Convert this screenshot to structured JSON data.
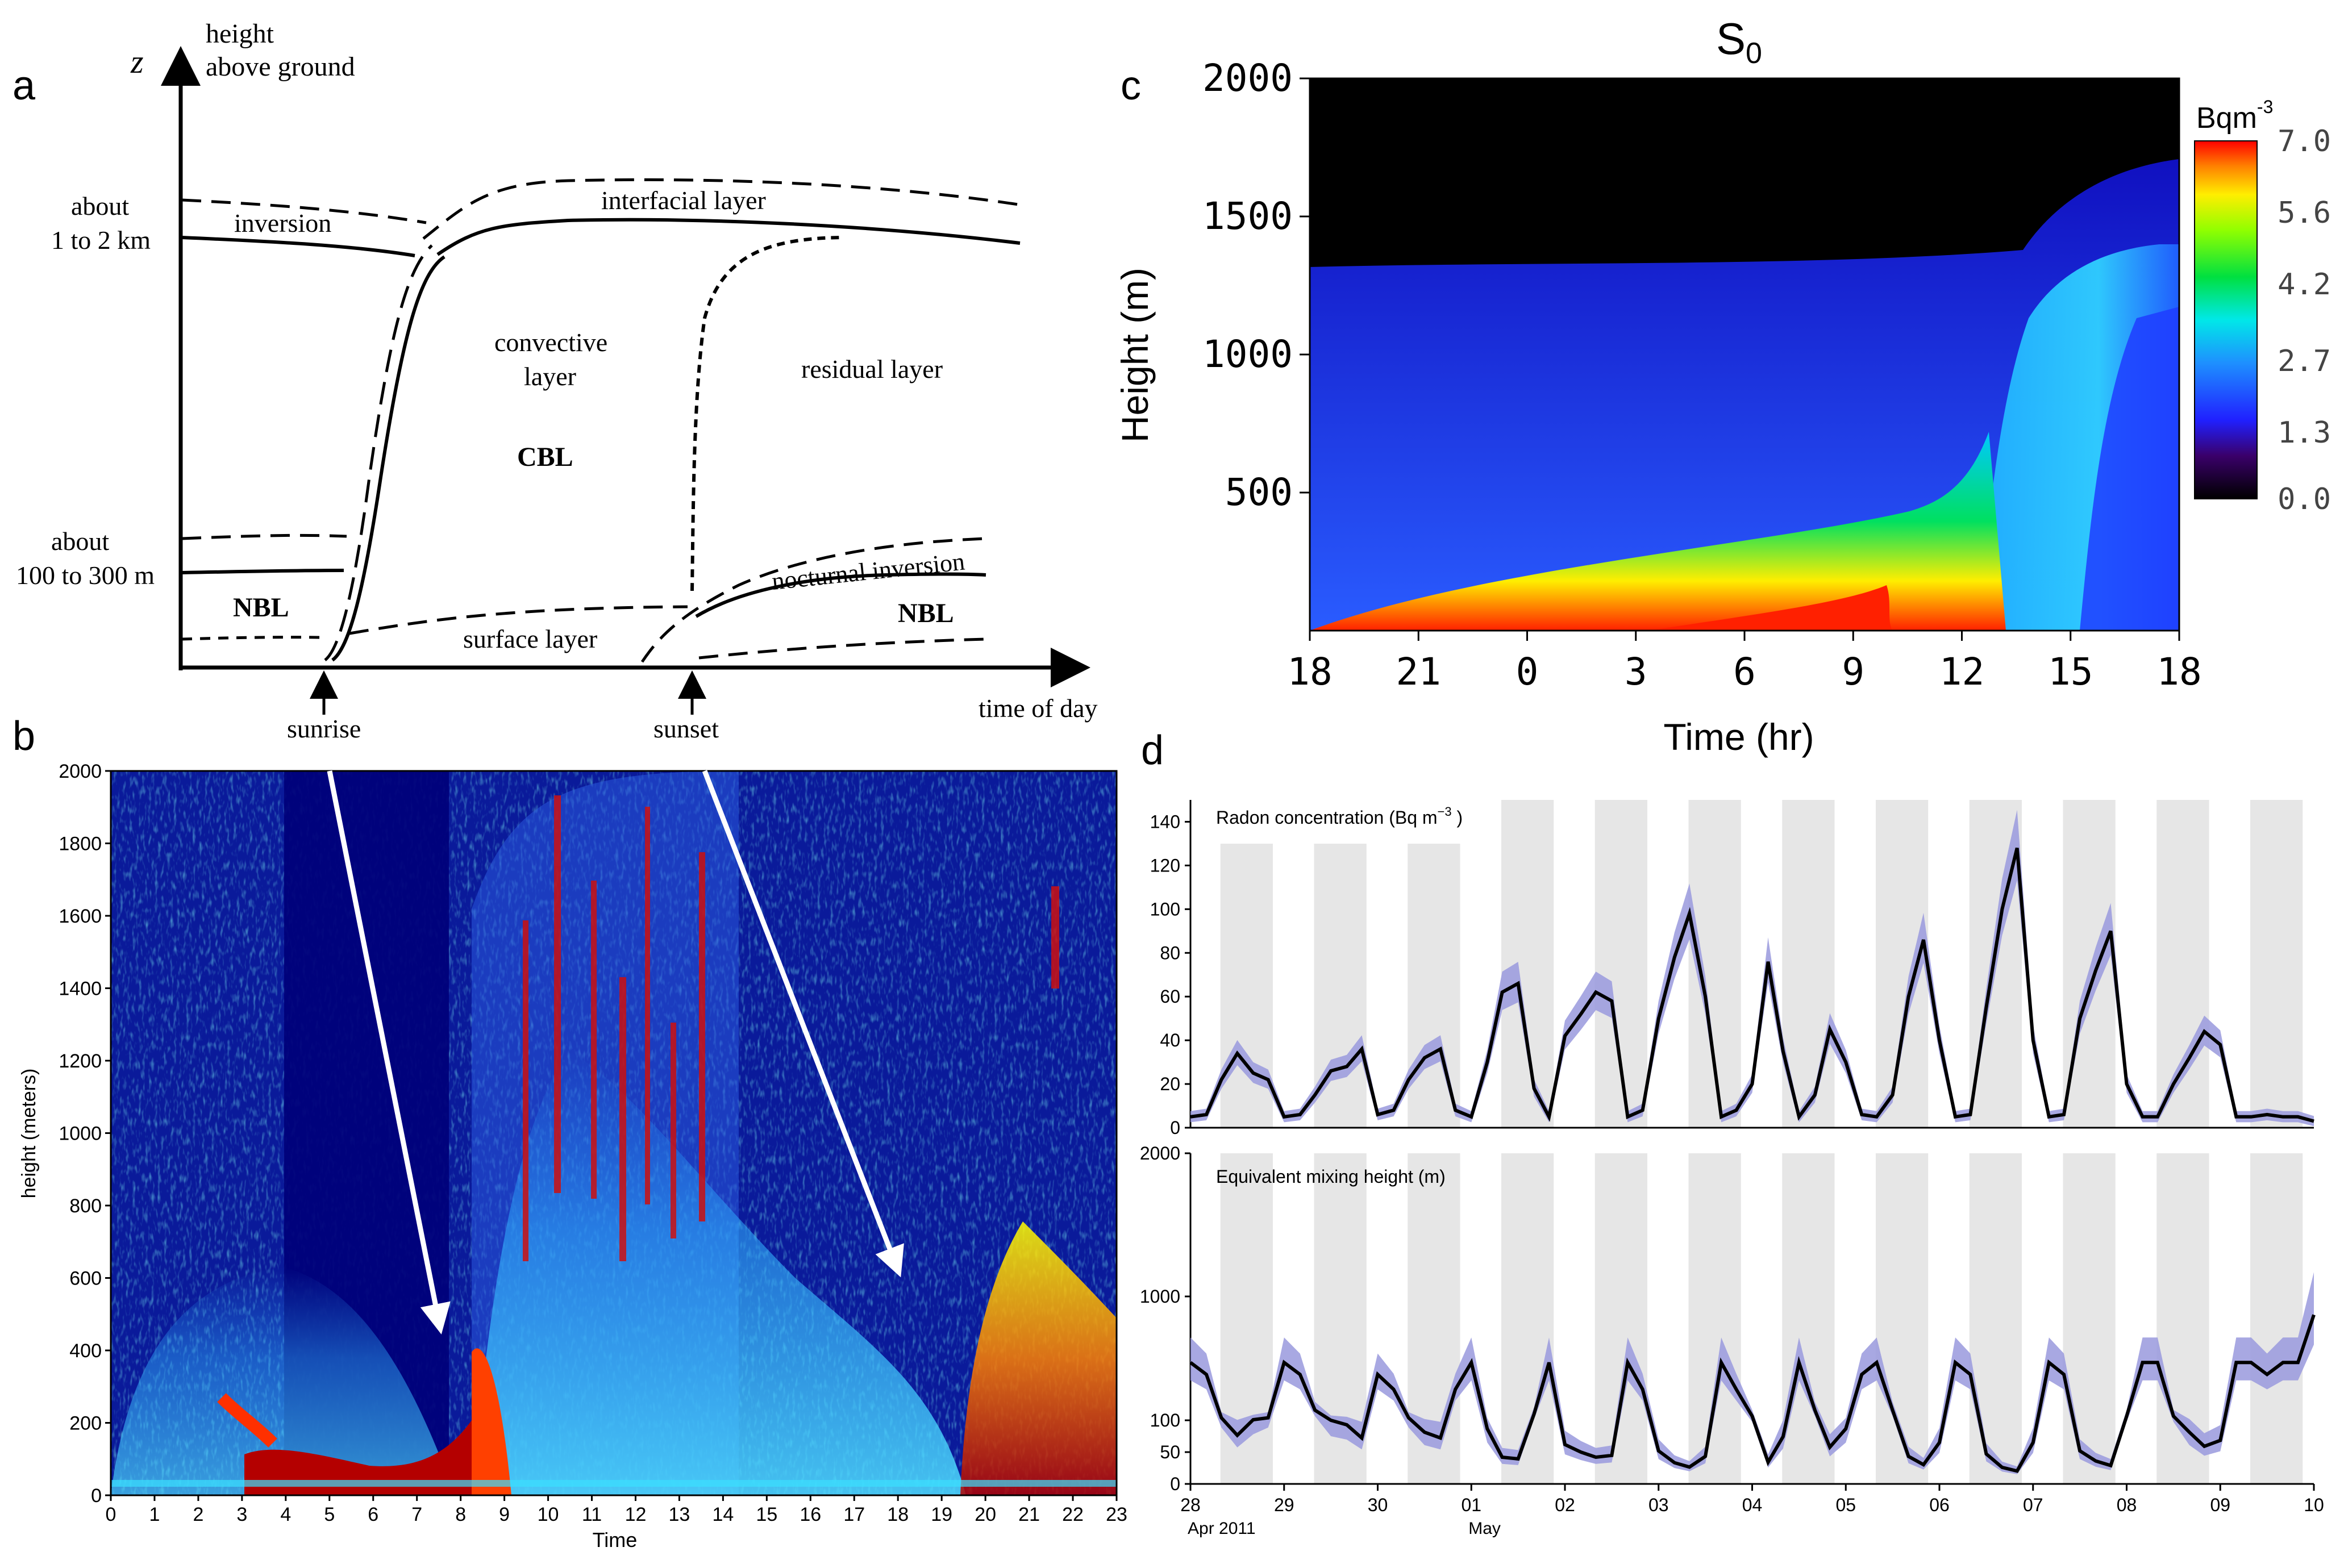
{
  "panel_letters": {
    "a": "a",
    "b": "b",
    "c": "c",
    "d": "d"
  },
  "colors": {
    "shade": "#e6e6e6",
    "band": "#9999dd",
    "jet_dark": "#00007f",
    "jet_blue": "#0000ff",
    "jet_cyan": "#00ffff",
    "jet_yellow": "#ffff00",
    "jet_red": "#ff0000"
  },
  "panel_a": {
    "z_label": "z",
    "y_axis_title": [
      "height",
      "above ground"
    ],
    "label_top": [
      "about",
      "1 to 2 km"
    ],
    "label_bottom": [
      "about",
      "100 to 300 m"
    ],
    "layers": {
      "inversion": "inversion",
      "interfacial": "interfacial layer",
      "convective": [
        "convective",
        "layer"
      ],
      "cbl": "CBL",
      "residual": "residual layer",
      "nocturnal": "nocturnal inversion",
      "nbl_left": "NBL",
      "nbl_right": "NBL",
      "surface": "surface layer"
    },
    "x_labels": {
      "sunrise": "sunrise",
      "sunset": "sunset",
      "time": "time of day"
    }
  },
  "chart_data": [
    {
      "type": "heatmap",
      "title": "",
      "xlabel": "Time",
      "ylabel": "height (meters)",
      "x_ticks": [
        "0",
        "1",
        "2",
        "3",
        "4",
        "5",
        "6",
        "7",
        "8",
        "9",
        "10",
        "11",
        "12",
        "13",
        "14",
        "15",
        "16",
        "17",
        "18",
        "19",
        "20",
        "21",
        "22",
        "23"
      ],
      "y_ticks": [
        "0",
        "200",
        "400",
        "600",
        "800",
        "1000",
        "1200",
        "1400",
        "1600",
        "1800",
        "2000"
      ],
      "xlim": [
        0,
        23
      ],
      "ylim": [
        0,
        2000
      ],
      "annotations": [
        {
          "type": "arrow",
          "from": [
            5.1,
            2000
          ],
          "to": [
            7.8,
            400
          ]
        },
        {
          "type": "arrow",
          "from": [
            13.6,
            2000
          ],
          "to": [
            18.3,
            580
          ]
        }
      ]
    },
    {
      "type": "heatmap",
      "title": "S",
      "title_sub": "0",
      "xlabel": "Time (hr)",
      "ylabel": "Height (m)",
      "x_ticks": [
        "18",
        "21",
        "0",
        "3",
        "6",
        "9",
        "12",
        "15",
        "18"
      ],
      "y_ticks": [
        "500",
        "1000",
        "1500",
        "2000"
      ],
      "ylim": [
        0,
        2000
      ],
      "colorbar": {
        "unit": "Bqm",
        "unit_sup": "-3",
        "ticks": [
          "7.0",
          "5.6",
          "4.2",
          "2.7",
          "1.3",
          "0.0"
        ],
        "range": [
          0,
          7
        ]
      }
    },
    {
      "type": "line",
      "title": "Radon concentration (Bq m",
      "title_sup": "−3",
      "title_end": " )",
      "y_ticks": [
        "0",
        "20",
        "40",
        "60",
        "80",
        "100",
        "120",
        "140"
      ],
      "ylim": [
        0,
        150
      ],
      "x": [
        0,
        0.17,
        0.33,
        0.5,
        0.67,
        0.83,
        1,
        1.17,
        1.33,
        1.5,
        1.67,
        1.83,
        2,
        2.17,
        2.33,
        2.5,
        2.67,
        2.83,
        3,
        3.17,
        3.33,
        3.5,
        3.67,
        3.83,
        4,
        4.17,
        4.33,
        4.5,
        4.67,
        4.83,
        5,
        5.17,
        5.33,
        5.5,
        5.67,
        5.83,
        6,
        6.17,
        6.33,
        6.5,
        6.67,
        6.83,
        7,
        7.17,
        7.33,
        7.5,
        7.67,
        7.83,
        8,
        8.17,
        8.33,
        8.5,
        8.67,
        8.83,
        9,
        9.17,
        9.33,
        9.5,
        9.67,
        9.83,
        10,
        10.17,
        10.33,
        10.5,
        10.67,
        10.83,
        11,
        11.17,
        11.33,
        11.5,
        11.67,
        11.83,
        12
      ],
      "values": [
        5,
        6,
        22,
        34,
        25,
        22,
        5,
        6,
        15,
        26,
        28,
        36,
        6,
        8,
        22,
        32,
        36,
        8,
        5,
        30,
        62,
        66,
        18,
        5,
        42,
        52,
        62,
        58,
        5,
        8,
        50,
        78,
        98,
        60,
        5,
        8,
        20,
        76,
        35,
        5,
        15,
        45,
        30,
        6,
        5,
        15,
        60,
        86,
        40,
        5,
        6,
        55,
        100,
        128,
        40,
        5,
        6,
        50,
        72,
        90,
        20,
        5,
        5,
        20,
        32,
        44,
        38,
        5,
        5,
        6,
        5,
        5,
        3
      ],
      "band": true
    },
    {
      "type": "line",
      "title": "Equivalent mixing height (m)",
      "y_ticks": [
        "0",
        "50",
        "100",
        "1000",
        "2000"
      ],
      "ylim": [
        0,
        2000
      ],
      "x_ticks": [
        "28",
        "29",
        "30",
        "01",
        "02",
        "03",
        "04",
        "05",
        "06",
        "07",
        "08",
        "09",
        "10"
      ],
      "x_sub": {
        "28": "Apr 2011",
        "01": "May"
      }
    }
  ]
}
